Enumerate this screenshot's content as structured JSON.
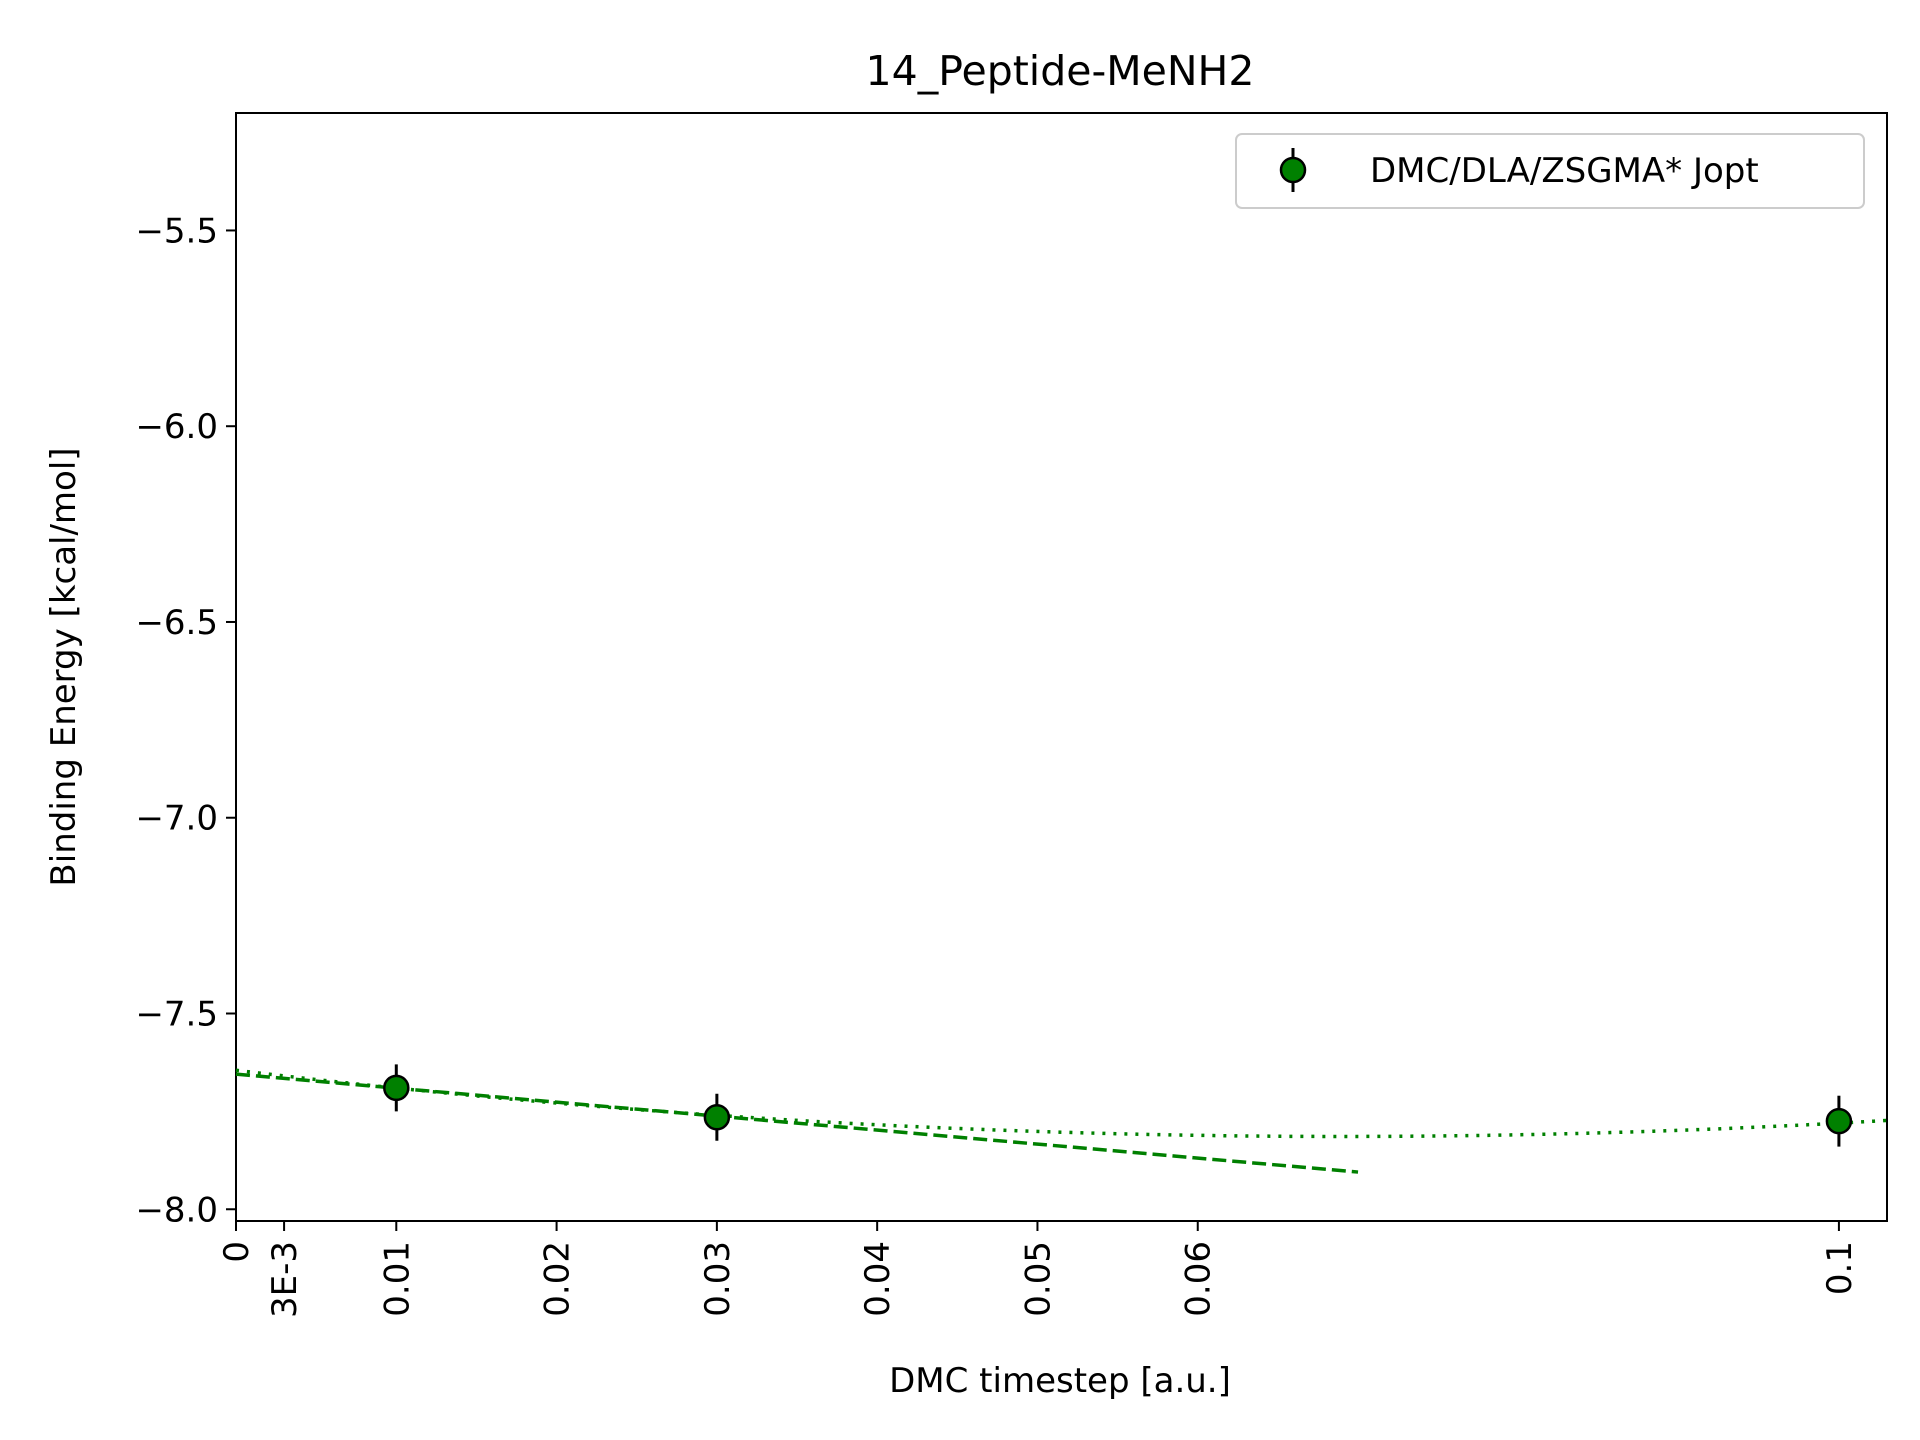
{
  "chart_data": {
    "type": "scatter",
    "title": "14_Peptide-MeNH2",
    "xlabel": "DMC timestep [a.u.]",
    "ylabel": "Binding Energy [kcal/mol]",
    "xlim": [
      0,
      0.103
    ],
    "ylim": [
      -8.03,
      -5.2
    ],
    "x_ticks": [
      0,
      0.003,
      0.01,
      0.02,
      0.03,
      0.04,
      0.05,
      0.06,
      0.1
    ],
    "x_tick_labels": [
      "0",
      "3E-3",
      "0.01",
      "0.02",
      "0.03",
      "0.04",
      "0.05",
      "0.06",
      "0.1"
    ],
    "y_ticks": [
      -5.5,
      -6.0,
      -6.5,
      -7.0,
      -7.5,
      -8.0
    ],
    "y_tick_labels": [
      "−5.5",
      "−6.0",
      "−6.5",
      "−7.0",
      "−7.5",
      "−8.0"
    ],
    "legend": {
      "position": "top-right",
      "label": "DMC/DLA/ZSGMA* Jopt"
    },
    "series": [
      {
        "name": "DMC/DLA/ZSGMA* Jopt",
        "color": "#008000",
        "points": [
          {
            "x": 0.01,
            "y": -7.69,
            "err": 0.06
          },
          {
            "x": 0.03,
            "y": -7.765,
            "err": 0.06
          },
          {
            "x": 0.1,
            "y": -7.775,
            "err": 0.065
          }
        ]
      }
    ],
    "fits": [
      {
        "name": "linear fit",
        "style": "dashed",
        "color": "#008000",
        "x": [
          0,
          0.07
        ],
        "y": [
          -7.655,
          -7.905
        ]
      },
      {
        "name": "quadratic fit",
        "style": "dotted",
        "color": "#008000",
        "coeffs": [
          -7.645,
          -4.9,
          35.5
        ],
        "x_range": [
          0,
          0.103
        ]
      }
    ]
  }
}
